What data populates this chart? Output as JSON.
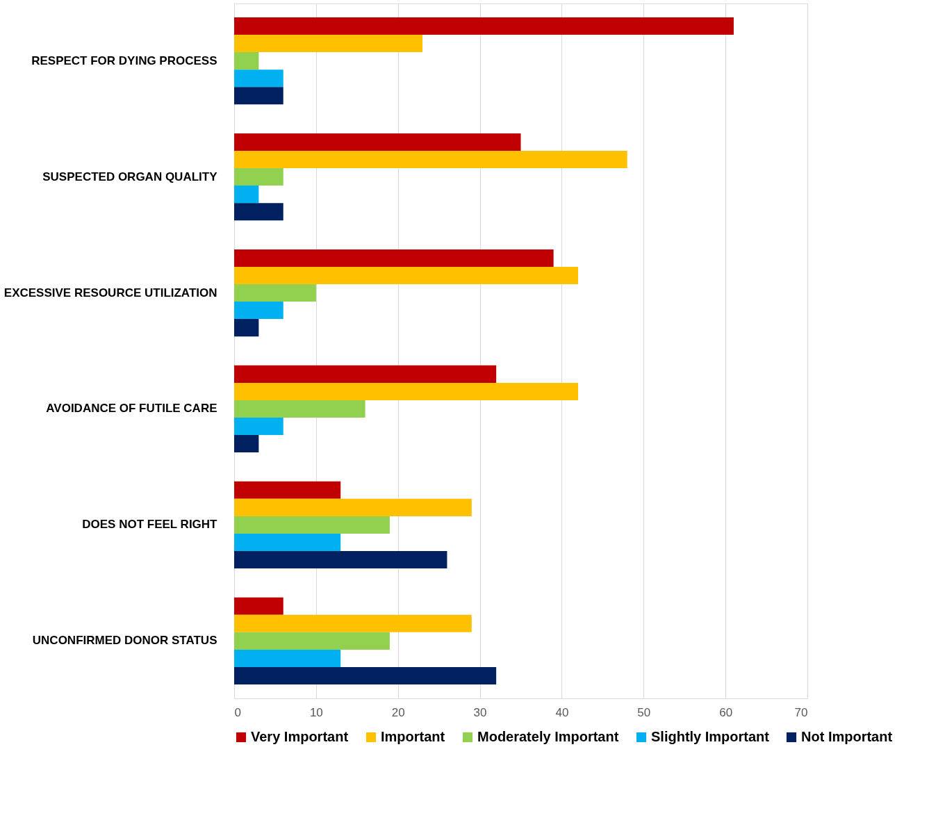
{
  "chart_data": {
    "type": "bar",
    "orientation": "horizontal",
    "categories": [
      "RESPECT FOR DYING PROCESS",
      "SUSPECTED ORGAN QUALITY",
      "EXCESSIVE RESOURCE UTILIZATION",
      "AVOIDANCE OF FUTILE CARE",
      "DOES NOT FEEL RIGHT",
      "UNCONFIRMED DONOR STATUS"
    ],
    "series": [
      {
        "name": "Very Important",
        "color": "#c00000",
        "values": [
          61,
          35,
          39,
          32,
          13,
          6
        ]
      },
      {
        "name": "Important",
        "color": "#ffc000",
        "values": [
          23,
          48,
          42,
          42,
          29,
          29
        ]
      },
      {
        "name": "Moderately Important",
        "color": "#92d050",
        "values": [
          3,
          6,
          10,
          16,
          19,
          19
        ]
      },
      {
        "name": "Slightly Important",
        "color": "#00b0f0",
        "values": [
          6,
          3,
          6,
          6,
          13,
          13
        ]
      },
      {
        "name": "Not Important",
        "color": "#002060",
        "values": [
          6,
          6,
          3,
          3,
          26,
          32
        ]
      }
    ],
    "xlim": [
      0,
      70
    ],
    "xticks": [
      0,
      10,
      20,
      30,
      40,
      50,
      60,
      70
    ],
    "grid": "x",
    "legend": "bottom"
  }
}
